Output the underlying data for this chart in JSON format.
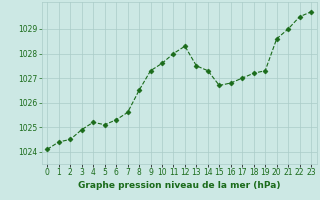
{
  "x": [
    0,
    1,
    2,
    3,
    4,
    5,
    6,
    7,
    8,
    9,
    10,
    11,
    12,
    13,
    14,
    15,
    16,
    17,
    18,
    19,
    20,
    21,
    22,
    23
  ],
  "y": [
    1024.1,
    1024.4,
    1024.5,
    1024.9,
    1025.2,
    1025.1,
    1025.3,
    1025.6,
    1026.5,
    1027.3,
    1027.6,
    1028.0,
    1028.3,
    1027.5,
    1027.3,
    1026.7,
    1026.8,
    1027.0,
    1027.2,
    1027.3,
    1028.6,
    1029.0,
    1029.5,
    1029.7
  ],
  "line_color": "#1a6b1a",
  "marker": "D",
  "marker_size": 2.5,
  "background_color": "#cce8e4",
  "grid_color": "#aaccc8",
  "title": "Graphe pression niveau de la mer (hPa)",
  "ylim": [
    1023.5,
    1030.1
  ],
  "xlim": [
    -0.5,
    23.5
  ],
  "yticks": [
    1024,
    1025,
    1026,
    1027,
    1028,
    1029
  ],
  "xtick_labels": [
    "0",
    "1",
    "2",
    "3",
    "4",
    "5",
    "6",
    "7",
    "8",
    "9",
    "10",
    "11",
    "12",
    "13",
    "14",
    "15",
    "16",
    "17",
    "18",
    "19",
    "20",
    "21",
    "22",
    "23"
  ],
  "title_fontsize": 6.5,
  "tick_fontsize": 5.5,
  "title_color": "#1a6b1a"
}
